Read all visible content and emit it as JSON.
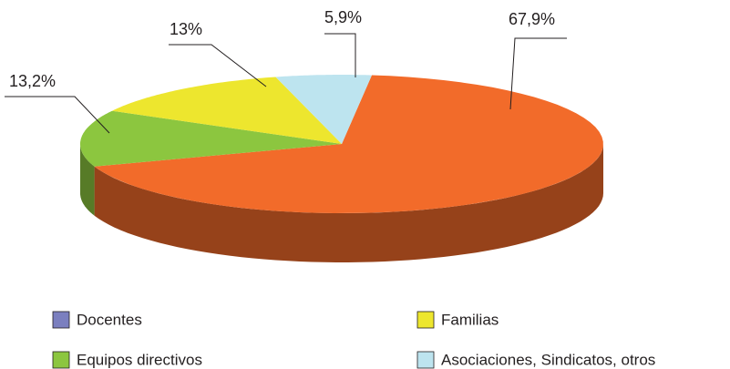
{
  "chart_data": {
    "type": "pie",
    "categories": [
      "Docentes",
      "Equipos directivos",
      "Familias",
      "Asociaciones, Sindicatos, otros"
    ],
    "values": [
      67.9,
      13.2,
      13,
      5.9
    ],
    "value_labels": [
      "67,9%",
      "13,2%",
      "13%",
      "5,9%"
    ],
    "colors": [
      "#f26b2a",
      "#8cc63f",
      "#ede62e",
      "#bde4ef"
    ],
    "legend_colors": [
      "#7b7fbf",
      "#8cc63f",
      "#ede62e",
      "#bde4ef"
    ]
  }
}
